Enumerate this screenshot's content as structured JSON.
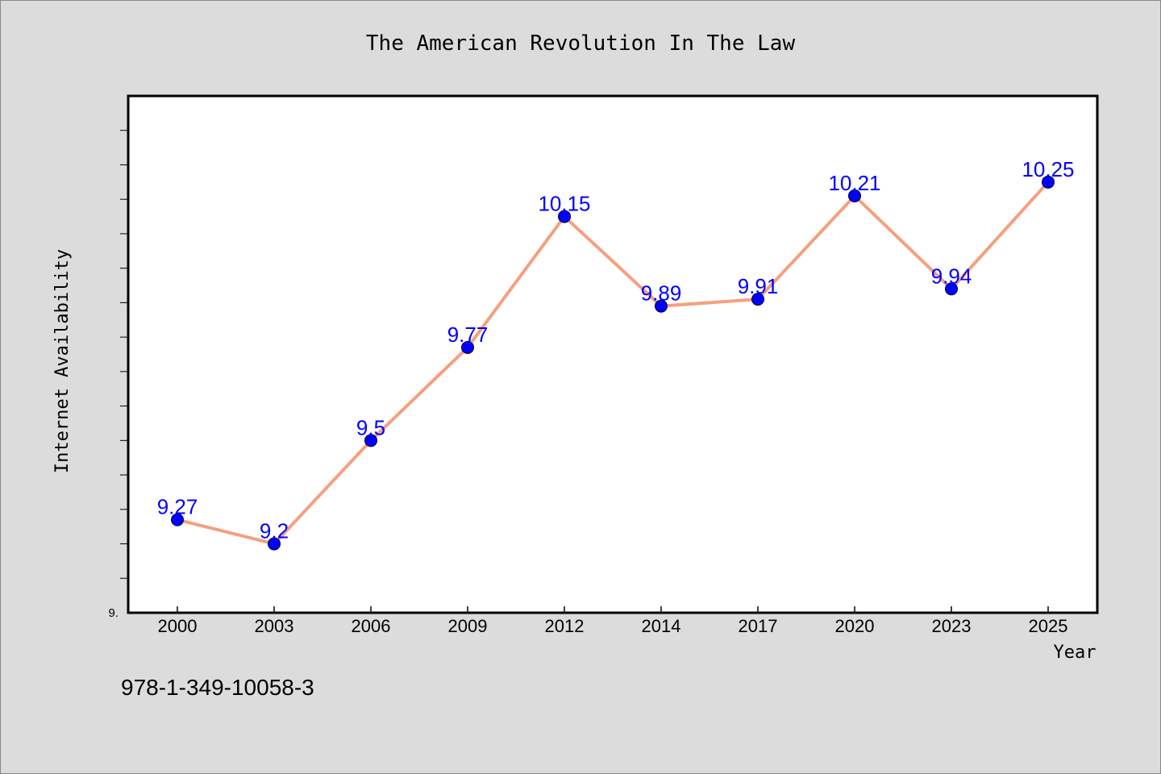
{
  "chart_data": {
    "type": "line",
    "title": "The American Revolution In The Law",
    "xlabel": "Year",
    "ylabel": "Internet Availability",
    "categories": [
      "2000",
      "2003",
      "2006",
      "2009",
      "2012",
      "2014",
      "2017",
      "2020",
      "2023",
      "2025"
    ],
    "series": [
      {
        "values": [
          9.27,
          9.2,
          9.5,
          9.77,
          10.15,
          9.89,
          9.91,
          10.21,
          9.94,
          10.25
        ]
      }
    ],
    "data_labels": [
      "9.27",
      "9.2",
      "9.5",
      "9.77",
      "10.15",
      "9.89",
      "9.91",
      "10.21",
      "9.94",
      "10.25"
    ],
    "ylim": [
      9.0,
      10.5
    ],
    "yticks_minor_step": 0.1,
    "ytick_labels": [
      "9."
    ],
    "grid": false,
    "line_color": "#f4a07f",
    "marker_color": "#0000ff",
    "label_color": "#0000ff"
  },
  "footer_text": "978-1-349-10058-3"
}
